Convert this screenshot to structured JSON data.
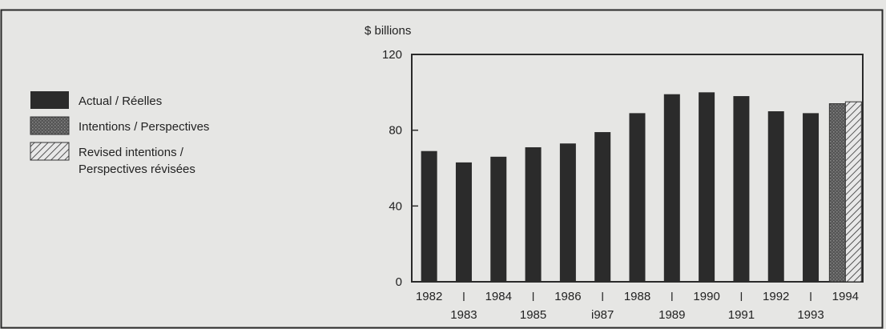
{
  "chart_data": {
    "type": "bar",
    "ylabel": "$ billions",
    "ylim": [
      0,
      120
    ],
    "yticks": [
      0,
      40,
      80,
      120
    ],
    "categories": [
      "1982",
      "1983",
      "1984",
      "1985",
      "1986",
      "1987",
      "1988",
      "1989",
      "1990",
      "1991",
      "1992",
      "1993",
      "1994"
    ],
    "tick_labels": [
      "1982",
      "1983",
      "1984",
      "1985",
      "1986",
      "i987",
      "1988",
      "1989",
      "1990",
      "1991",
      "1992",
      "1993",
      "1994"
    ],
    "series": [
      {
        "name": "Actual / Réelles",
        "color": "#2b2b2b",
        "values": [
          69,
          63,
          66,
          71,
          73,
          79,
          89,
          99,
          100,
          98,
          90,
          89,
          null
        ]
      },
      {
        "name": "Intentions / Perspectives",
        "color": "#4a4a4a",
        "pattern": "dotted",
        "values": [
          null,
          null,
          null,
          null,
          null,
          null,
          null,
          null,
          null,
          null,
          null,
          null,
          94
        ]
      },
      {
        "name": "Revised intentions / Perspectives révisées",
        "color": "#d8d8d8",
        "pattern": "hatched",
        "values": [
          null,
          null,
          null,
          null,
          null,
          null,
          null,
          null,
          null,
          null,
          null,
          null,
          95
        ]
      }
    ],
    "legend": {
      "placement": "left",
      "entries": [
        {
          "lines": [
            "Actual / Réelles"
          ]
        },
        {
          "lines": [
            "Intentions / Perspectives"
          ]
        },
        {
          "lines": [
            "Revised intentions /",
            "Perspectives révisées"
          ]
        }
      ]
    },
    "grid": false
  }
}
